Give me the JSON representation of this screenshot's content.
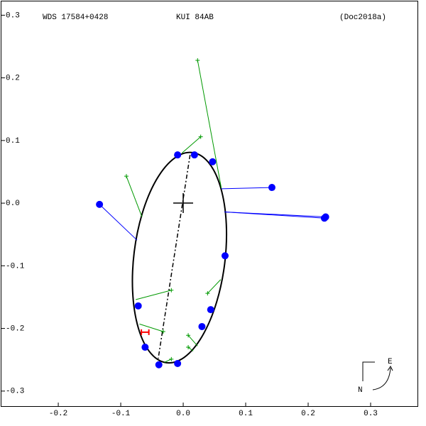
{
  "chart_data": {
    "type": "orbit",
    "title": "WDS 17584+0428",
    "subtitle": "KUI  84AB",
    "reference": "(Doc2018a)",
    "compass": {
      "east": "E",
      "north": "N"
    },
    "xlim": [
      -0.291,
      0.375
    ],
    "ylim": [
      -0.324,
      0.322
    ],
    "xticks": [
      -0.2,
      -0.1,
      {
        "value": 0,
        "label": "0.0"
      },
      0.1,
      0.2,
      0.3
    ],
    "yticks": [
      0.3,
      0.2,
      0.1,
      {
        "value": 0,
        "label": "0.0"
      },
      -0.1,
      -0.2,
      -0.3
    ],
    "orbit": {
      "center": [
        -0.006,
        -0.087
      ],
      "semi_axes": [
        0.073,
        0.169
      ],
      "angle": 7,
      "color": "#000000"
    },
    "node_line": {
      "x": [
        0.011,
        -0.04
      ],
      "y": [
        0.077,
        -0.248
      ],
      "color": "#000000"
    },
    "series": [
      {
        "color": "#0000ff",
        "marker": "circle",
        "x": [
          -0.134,
          -0.009,
          0.018,
          0.047,
          0.142,
          0.228,
          0.226,
          0.067,
          0.044,
          0.03,
          -0.072,
          -0.061,
          -0.039,
          -0.009
        ],
        "y": [
          -0.002,
          0.077,
          0.077,
          0.066,
          0.025,
          -0.022,
          -0.024,
          -0.084,
          -0.17,
          -0.197,
          -0.164,
          -0.23,
          -0.258,
          -0.256
        ],
        "x_end": [
          -0.074,
          null,
          null,
          null,
          0.061,
          0.066,
          0.066,
          null,
          null,
          null,
          null,
          null,
          null,
          null
        ],
        "y_end": [
          -0.059,
          null,
          null,
          null,
          0.023,
          -0.014,
          -0.014,
          null,
          null,
          null,
          null,
          null,
          null,
          null
        ]
      },
      {
        "color": "#009900",
        "marker": "plus",
        "x": [
          0.023,
          -0.091,
          0.028,
          -0.019,
          0.039,
          -0.032,
          0.008,
          0.008,
          -0.019
        ],
        "y": [
          0.228,
          0.043,
          0.106,
          -0.139,
          -0.144,
          -0.205,
          -0.211,
          -0.23,
          -0.249
        ],
        "x_end": [
          0.061,
          -0.066,
          -0.002,
          -0.076,
          0.06,
          -0.07,
          0.023,
          0.016,
          -0.03
        ],
        "y_end": [
          0.024,
          -0.022,
          0.08,
          -0.154,
          -0.122,
          -0.193,
          -0.228,
          -0.236,
          -0.254
        ]
      },
      {
        "color": "#ff0000",
        "marker": "errorbar",
        "x": [
          -0.061
        ],
        "y": [
          -0.206
        ],
        "xerr": [
          0.006
        ]
      }
    ]
  }
}
